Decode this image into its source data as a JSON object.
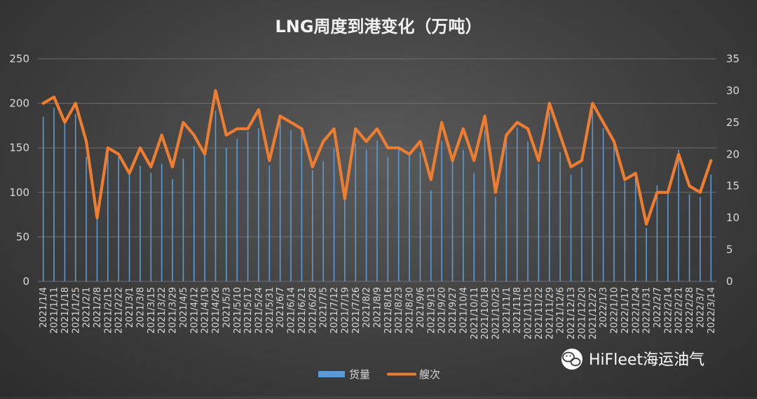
{
  "chart_data": {
    "type": "bar+line",
    "title": "LNG周度到港变化（万吨）",
    "categories": [
      "2021/1/4",
      "2021/1/11",
      "2021/1/18",
      "2021/1/25",
      "2021/2/1",
      "2021/2/8",
      "2021/2/15",
      "2021/2/22",
      "2021/3/1",
      "2021/3/8",
      "2021/3/15",
      "2021/3/22",
      "2021/3/29",
      "2021/4/5",
      "2021/4/12",
      "2021/4/19",
      "2021/4/26",
      "2021/5/3",
      "2021/5/10",
      "2021/5/17",
      "2021/5/24",
      "2021/5/31",
      "2021/6/7",
      "2021/6/14",
      "2021/6/21",
      "2021/6/28",
      "2021/7/5",
      "2021/7/12",
      "2021/7/19",
      "2021/7/26",
      "2021/8/2",
      "2021/8/9",
      "2021/8/16",
      "2021/8/23",
      "2021/8/30",
      "2021/9/6",
      "2021/9/13",
      "2021/9/20",
      "2021/9/27",
      "2021/10/4",
      "2021/10/11",
      "2021/10/18",
      "2021/10/25",
      "2021/11/1",
      "2021/11/8",
      "2021/11/15",
      "2021/11/22",
      "2021/11/29",
      "2021/12/6",
      "2021/12/13",
      "2021/12/20",
      "2021/12/27",
      "2022/1/3",
      "2022/1/10",
      "2022/1/17",
      "2022/1/24",
      "2022/1/31",
      "2022/2/7",
      "2022/2/14",
      "2022/2/21",
      "2022/2/28",
      "2022/3/7",
      "2022/3/14"
    ],
    "x_tick_labels": [
      "2021/1/4",
      "2021/1/11",
      "2021/1/18",
      "2021/1/25",
      "2021/2/1",
      "2021/2/8",
      "2021/2/15",
      "2021/2/22",
      "2021/3/1",
      "2021/3/8",
      "2021/3/15",
      "2021/3/22",
      "2021/3/29",
      "2021/4/5",
      "2021/4/12",
      "2021/4/19",
      "2021/4/26",
      "2021/5/3",
      "2021/5/10",
      "2021/5/17",
      "2021/5/24",
      "2021/5/31",
      "2021/6/7",
      "2021/6/14",
      "2021/6/21",
      "2021/6/28",
      "2021/7/5",
      "2021/7/12",
      "2021/7/19",
      "2021/7/26",
      "2021/8/2",
      "2021/8/9",
      "2021/8/16",
      "2021/8/23",
      "2021/8/30",
      "2021/9/6",
      "2021/9/13",
      "2021/9/20",
      "2021/9/27",
      "2021/10/4",
      "2021/10/11",
      "2021/10/18",
      "2021/10/25",
      "2021/11/1",
      "2021/11/8",
      "2021/11/15",
      "2021/11/22",
      "2021/11/29",
      "2021/12/6",
      "2021/12/13",
      "2021/12/20",
      "2021/12/27",
      "2022/1/3",
      "2022/1/10",
      "2022/1/17",
      "2022/1/24",
      "2022/1/31",
      "2022/2/7",
      "2022/2/14",
      "2022/2/21",
      "2022/2/28",
      "2022/3/7",
      "2022/3/14"
    ],
    "series": [
      {
        "name": "货量",
        "type": "bar",
        "axis": "left",
        "color": "#5b9bd5",
        "values": [
          185,
          195,
          178,
          188,
          140,
          70,
          148,
          140,
          120,
          130,
          122,
          132,
          115,
          138,
          152,
          145,
          192,
          150,
          160,
          168,
          172,
          130,
          183,
          170,
          168,
          125,
          135,
          150,
          105,
          155,
          148,
          158,
          140,
          150,
          142,
          145,
          102,
          158,
          138,
          148,
          122,
          170,
          95,
          160,
          173,
          157,
          132,
          190,
          145,
          120,
          128,
          192,
          172,
          155,
          112,
          123,
          60,
          108,
          100,
          148,
          98,
          95,
          120
        ]
      },
      {
        "name": "艘次",
        "type": "line",
        "axis": "right",
        "color": "#ed7d31",
        "values": [
          28,
          29,
          25,
          28,
          22,
          10,
          21,
          20,
          17,
          21,
          18,
          23,
          18,
          25,
          23,
          20,
          30,
          23,
          24,
          24,
          27,
          19,
          26,
          25,
          24,
          18,
          22,
          24,
          13,
          24,
          22,
          24,
          21,
          21,
          20,
          22,
          16,
          25,
          19,
          24,
          19,
          26,
          14,
          23,
          25,
          24,
          19,
          28,
          23,
          18,
          19,
          28,
          25,
          22,
          16,
          17,
          9,
          14,
          14,
          20,
          15,
          14,
          19
        ]
      }
    ],
    "y_left": {
      "ylim": [
        0,
        250
      ],
      "ticks": [
        0,
        50,
        100,
        150,
        200,
        250
      ],
      "tick_labels": [
        "0",
        "50",
        "100",
        "150",
        "200",
        "250"
      ]
    },
    "y_right": {
      "ylim": [
        0,
        35
      ],
      "ticks": [
        0,
        5,
        10,
        15,
        20,
        25,
        30,
        35
      ],
      "tick_labels": [
        "0",
        "5",
        "10",
        "15",
        "20",
        "25",
        "30",
        "35"
      ]
    },
    "grid": true,
    "legend_position": "bottom"
  },
  "watermark": {
    "text": "HiFleet海运油气",
    "icon": "wechat-icon"
  }
}
